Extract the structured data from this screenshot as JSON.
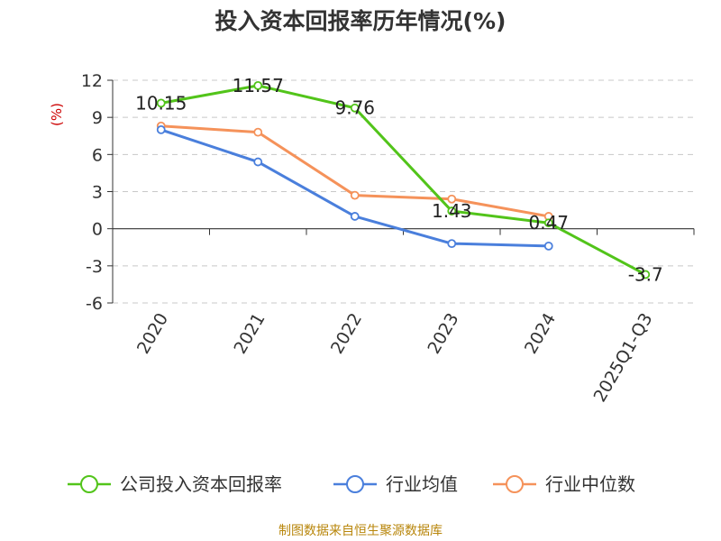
{
  "chart_data": {
    "type": "line",
    "title": "投入资本回报率历年情况(%)",
    "ylabel": "(%)",
    "categories": [
      "2020",
      "2021",
      "2022",
      "2023",
      "2024",
      "2025Q1-Q3"
    ],
    "ylim": [
      -6,
      12
    ],
    "yticks": [
      12,
      9,
      6,
      3,
      0,
      -3,
      -6
    ],
    "grid": true,
    "legend_position": "bottom",
    "series": [
      {
        "name": "公司投入资本回报率",
        "color": "#52c41a",
        "values": [
          10.15,
          11.57,
          9.76,
          1.43,
          0.47,
          -3.7
        ],
        "labels": [
          "10.15",
          "11.57",
          "9.76",
          "1.43",
          "0.47",
          "-3.7"
        ]
      },
      {
        "name": "行业均值",
        "color": "#4a7fdc",
        "values": [
          8.0,
          5.4,
          1.0,
          -1.2,
          -1.4,
          null
        ]
      },
      {
        "name": "行业中位数",
        "color": "#f5925a",
        "values": [
          8.3,
          7.8,
          2.7,
          2.4,
          1.0,
          null
        ]
      }
    ]
  },
  "source": "制图数据来自恒生聚源数据库"
}
